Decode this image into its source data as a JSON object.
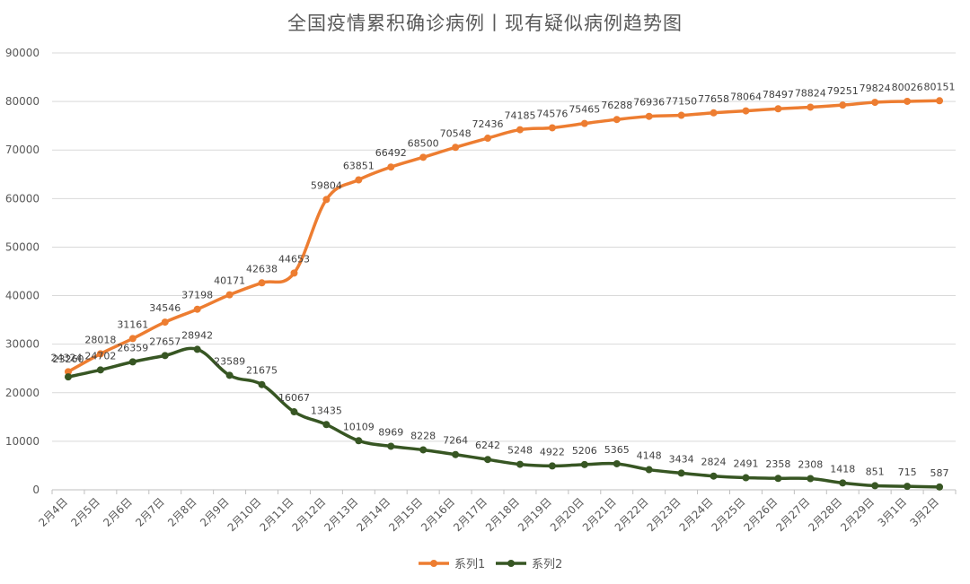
{
  "chart_data": {
    "type": "line",
    "title": "全国疫情累积确诊病例丨现有疑似病例趋势图",
    "categories": [
      "2月4日",
      "2月5日",
      "2月6日",
      "2月7日",
      "2月8日",
      "2月9日",
      "2月10日",
      "2月11日",
      "2月12日",
      "2月13日",
      "2月14日",
      "2月15日",
      "2月16日",
      "2月17日",
      "2月18日",
      "2月19日",
      "2月20日",
      "2月21日",
      "2月22日",
      "2月23日",
      "2月24日",
      "2月25日",
      "2月26日",
      "2月27日",
      "2月28日",
      "2月29日",
      "3月1日",
      "3月2日"
    ],
    "series": [
      {
        "name": "系列1",
        "color": "#ED7D31",
        "values": [
          24324,
          28018,
          31161,
          34546,
          37198,
          40171,
          42638,
          44653,
          59804,
          63851,
          66492,
          68500,
          70548,
          72436,
          74185,
          74576,
          75465,
          76288,
          76936,
          77150,
          77658,
          78064,
          78497,
          78824,
          79251,
          79824,
          80026,
          80151
        ]
      },
      {
        "name": "系列2",
        "color": "#375623",
        "values": [
          23260,
          24702,
          26359,
          27657,
          28942,
          23589,
          21675,
          16067,
          13435,
          10109,
          8969,
          8228,
          7264,
          6242,
          5248,
          4922,
          5206,
          5365,
          4148,
          3434,
          2824,
          2491,
          2358,
          2308,
          1418,
          851,
          715,
          587
        ]
      }
    ],
    "yticks": [
      0,
      10000,
      20000,
      30000,
      40000,
      50000,
      60000,
      70000,
      80000,
      90000
    ],
    "ylim": [
      0,
      90000
    ],
    "grid": true,
    "legend": "bottom"
  }
}
